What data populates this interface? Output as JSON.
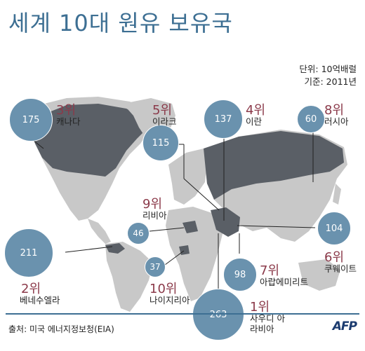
{
  "title": "세계 10대 원유 보유국",
  "unit": "단위: 10억배럴",
  "base_year": "기준: 2011년",
  "source": "출처: 미국 에너지정보청(EIA)",
  "logo": "AFP",
  "colors": {
    "title": "#3d6f93",
    "bubble": "#6a92ae",
    "rank": "#8b3a4a",
    "land": "#c8c8c8",
    "highlight": "#5a5f66"
  },
  "countries": [
    {
      "rank": "3위",
      "name": "캐나다",
      "value": "175"
    },
    {
      "rank": "5위",
      "name": "이라크",
      "value": "115"
    },
    {
      "rank": "4위",
      "name": "이란",
      "value": "137"
    },
    {
      "rank": "8위",
      "name": "러시아",
      "value": "60"
    },
    {
      "rank": "9위",
      "name": "리비아",
      "value": "46"
    },
    {
      "rank": "2위",
      "name": "베네수엘라",
      "value": "211"
    },
    {
      "rank": "10위",
      "name": "나이지리아",
      "value": "37"
    },
    {
      "rank": "7위",
      "name": "아랍에미리트",
      "value": "98"
    },
    {
      "rank": "6위",
      "name": "쿠웨이트",
      "value": "104"
    },
    {
      "rank": "1위",
      "name": "사우디 아라비아",
      "value": "263"
    }
  ]
}
